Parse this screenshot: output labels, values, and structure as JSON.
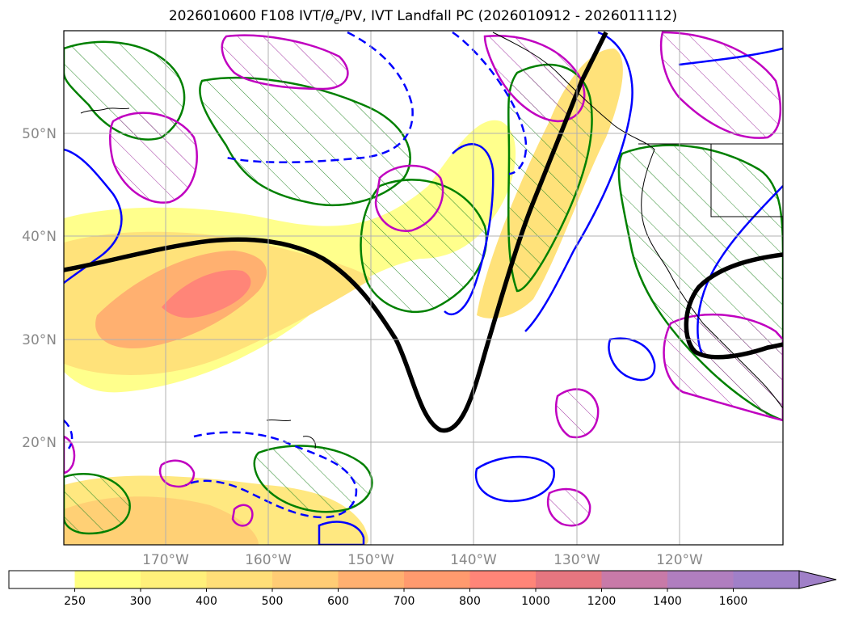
{
  "title_parts": {
    "prefix": "2026010600 F108 IVT/",
    "theta": "θ",
    "sub": "e",
    "suffix": "/PV, IVT Landfall PC (2026010912 - 2026011112)"
  },
  "lat_labels": [
    "50°N",
    "40°N",
    "30°N",
    "20°N"
  ],
  "lon_labels": [
    "170°W",
    "160°W",
    "150°W",
    "140°W",
    "130°W",
    "120°W"
  ],
  "colorbar": {
    "labels": [
      "250",
      "300",
      "400",
      "500",
      "600",
      "700",
      "800",
      "1000",
      "1200",
      "1400",
      "1600"
    ],
    "colors": [
      "#ffffff",
      "#ffff80",
      "#fff07a",
      "#ffdf78",
      "#ffcc75",
      "#ffb070",
      "#ff9a6e",
      "#ff8578",
      "#e67680",
      "#c87aa8",
      "#b07ebf",
      "#a080c8"
    ]
  },
  "legend_colors": {
    "pv_line": "#000000",
    "theta_e": "#0000ff",
    "green_contour": "#008000",
    "magenta_contour": "#c000c0"
  }
}
